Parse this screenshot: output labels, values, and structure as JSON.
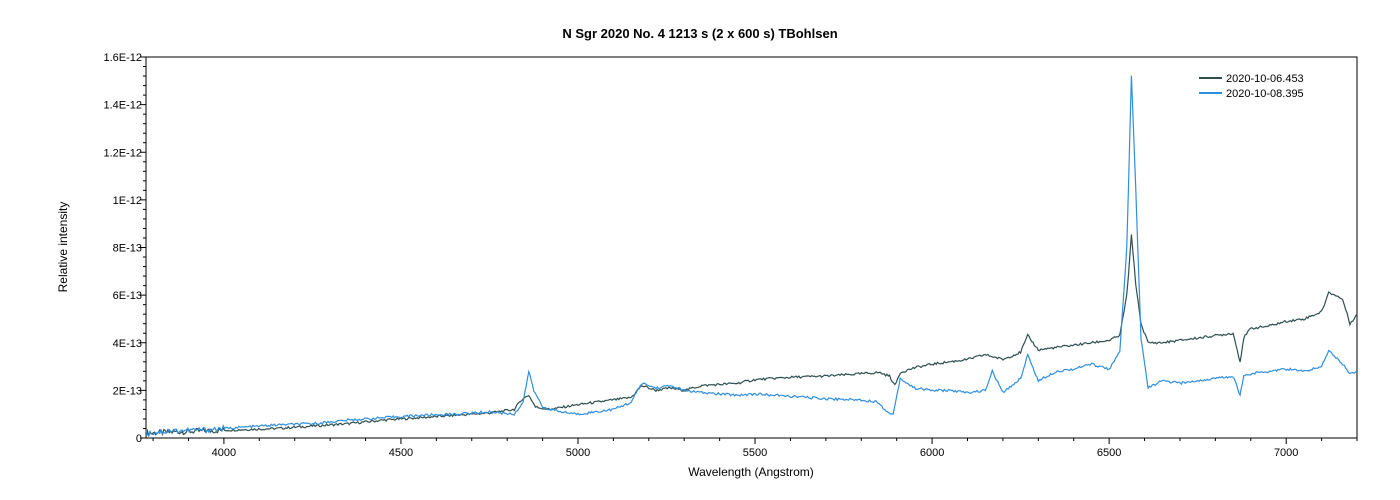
{
  "chart_data": {
    "type": "line",
    "title": "N Sgr 2020 No. 4   1213 s (2 x 600 s)   TBohlsen",
    "xlabel": "Wavelength (Angstrom)",
    "ylabel": "Relative intensity",
    "xlim": [
      3780,
      7200
    ],
    "ylim": [
      0,
      1.6e-12
    ],
    "x_ticks": [
      4000,
      4500,
      5000,
      5500,
      6000,
      6500,
      7000
    ],
    "x_tick_labels": [
      "4000",
      "4500",
      "5000",
      "5500",
      "6000",
      "6500",
      "7000"
    ],
    "y_ticks": [
      0,
      2e-13,
      4e-13,
      6e-13,
      8e-13,
      1e-12,
      1.2e-12,
      1.4e-12,
      1.6e-12
    ],
    "y_tick_labels": [
      "0",
      "2E-13",
      "4E-13",
      "6E-13",
      "8E-13",
      "1E-12",
      "1.2E-12",
      "1.4E-12",
      "1.6E-12"
    ],
    "grid": false,
    "legend_position": "top-right",
    "series": [
      {
        "name": "2020-10-06.453",
        "color": "#2f4f4f",
        "x": [
          3780,
          3850,
          3950,
          4050,
          4150,
          4250,
          4350,
          4450,
          4550,
          4650,
          4750,
          4820,
          4840,
          4861,
          4880,
          4920,
          4960,
          5000,
          5050,
          5100,
          5150,
          5180,
          5220,
          5260,
          5300,
          5350,
          5400,
          5450,
          5500,
          5600,
          5700,
          5800,
          5850,
          5880,
          5895,
          5910,
          5950,
          6000,
          6050,
          6100,
          6150,
          6200,
          6250,
          6270,
          6300,
          6350,
          6400,
          6450,
          6500,
          6530,
          6550,
          6563,
          6575,
          6590,
          6610,
          6650,
          6700,
          6750,
          6800,
          6850,
          6870,
          6880,
          6900,
          6950,
          7000,
          7050,
          7100,
          7120,
          7140,
          7160,
          7180,
          7200
        ],
        "y": [
          2e-14,
          2.5e-14,
          3e-14,
          3.5e-14,
          4e-14,
          5e-14,
          6e-14,
          7.5e-14,
          8.5e-14,
          9.5e-14,
          1.05e-13,
          1.2e-13,
          1.6e-13,
          1.8e-13,
          1.3e-13,
          1.2e-13,
          1.3e-13,
          1.4e-13,
          1.5e-13,
          1.6e-13,
          1.7e-13,
          2.2e-13,
          2e-13,
          2.1e-13,
          2e-13,
          2.2e-13,
          2.25e-13,
          2.3e-13,
          2.45e-13,
          2.55e-13,
          2.6e-13,
          2.7e-13,
          2.75e-13,
          2.6e-13,
          2.2e-13,
          2.75e-13,
          2.95e-13,
          3.1e-13,
          3.2e-13,
          3.3e-13,
          3.5e-13,
          3.3e-13,
          3.6e-13,
          4.3e-13,
          3.7e-13,
          3.8e-13,
          3.9e-13,
          4e-13,
          4.1e-13,
          4.3e-13,
          6e-13,
          8.5e-13,
          6.5e-13,
          4.8e-13,
          4e-13,
          4e-13,
          4.1e-13,
          4.2e-13,
          4.3e-13,
          4.4e-13,
          3.2e-13,
          4.2e-13,
          4.6e-13,
          4.7e-13,
          4.9e-13,
          5e-13,
          5.3e-13,
          6.1e-13,
          6e-13,
          5.8e-13,
          4.8e-13,
          5.2e-13
        ]
      },
      {
        "name": "2020-10-08.395",
        "color": "#2f8fdf",
        "x": [
          3780,
          3850,
          3950,
          4050,
          4150,
          4250,
          4350,
          4450,
          4550,
          4650,
          4750,
          4820,
          4845,
          4861,
          4875,
          4900,
          4950,
          5000,
          5050,
          5100,
          5150,
          5180,
          5220,
          5260,
          5300,
          5350,
          5400,
          5450,
          5500,
          5600,
          5700,
          5800,
          5850,
          5870,
          5890,
          5910,
          5950,
          6000,
          6050,
          6100,
          6150,
          6170,
          6200,
          6250,
          6270,
          6300,
          6350,
          6400,
          6450,
          6500,
          6530,
          6550,
          6563,
          6575,
          6590,
          6610,
          6650,
          6700,
          6750,
          6800,
          6850,
          6870,
          6880,
          6900,
          6950,
          7000,
          7050,
          7100,
          7120,
          7140,
          7160,
          7180,
          7200
        ],
        "y": [
          2e-14,
          3e-14,
          3.5e-14,
          4.5e-14,
          5.5e-14,
          6e-14,
          7.5e-14,
          8.5e-14,
          9.5e-14,
          1e-13,
          1.1e-13,
          1e-13,
          1.5e-13,
          2.8e-13,
          2e-13,
          1.3e-13,
          1.1e-13,
          1e-13,
          1.1e-13,
          1.2e-13,
          1.5e-13,
          2.3e-13,
          2.1e-13,
          2.2e-13,
          2e-13,
          1.9e-13,
          1.85e-13,
          1.8e-13,
          1.85e-13,
          1.75e-13,
          1.65e-13,
          1.6e-13,
          1.5e-13,
          1.1e-13,
          1e-13,
          2.5e-13,
          2.1e-13,
          2e-13,
          2e-13,
          1.9e-13,
          2e-13,
          2.8e-13,
          1.9e-13,
          2.5e-13,
          3.5e-13,
          2.4e-13,
          2.8e-13,
          2.9e-13,
          3.1e-13,
          2.9e-13,
          3.6e-13,
          8e-13,
          1.52e-12,
          1.05e-12,
          4.2e-13,
          2.1e-13,
          2.4e-13,
          2.3e-13,
          2.4e-13,
          2.5e-13,
          2.6e-13,
          1.8e-13,
          2.6e-13,
          2.7e-13,
          2.8e-13,
          2.9e-13,
          2.8e-13,
          3e-13,
          3.7e-13,
          3.4e-13,
          3.1e-13,
          2.7e-13,
          2.8e-13
        ]
      }
    ]
  }
}
